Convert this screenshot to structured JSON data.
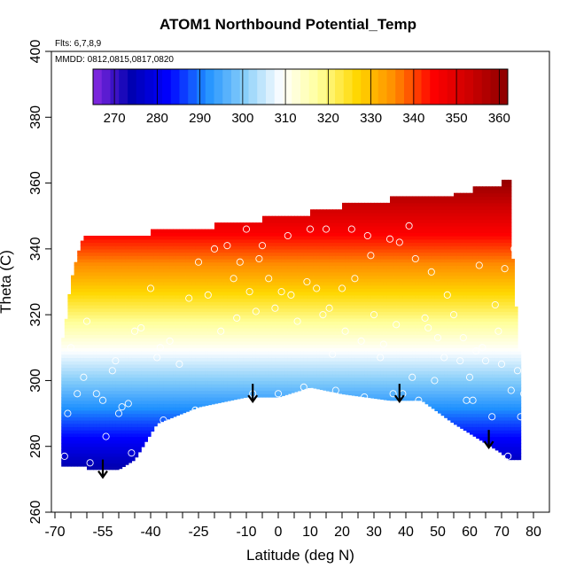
{
  "chart_data": {
    "type": "heatmap",
    "title": "ATOM1 Northbound Potential_Temp",
    "annotations": {
      "flights": "Flts: 6,7,8,9",
      "dates": "MMDD: 0812,0815,0817,0820"
    },
    "xlabel": "Latitude (deg N)",
    "ylabel": "Theta (C)",
    "xlim": [
      -70,
      80
    ],
    "ylim": [
      260,
      400
    ],
    "x_ticks": [
      -70,
      -55,
      -40,
      -25,
      -10,
      0,
      10,
      20,
      30,
      40,
      50,
      60,
      70,
      80
    ],
    "x_tick_labels": [
      "-70",
      "-55",
      "-40",
      "-25",
      "-10",
      "0",
      "10",
      "20",
      "30",
      "40",
      "50",
      "60",
      "70",
      "80"
    ],
    "x_minor_step": 5,
    "y_ticks": [
      260,
      280,
      300,
      320,
      340,
      360,
      380,
      400
    ],
    "y_tick_labels": [
      "260",
      "280",
      "300",
      "320",
      "340",
      "360",
      "380",
      "400"
    ],
    "colorbar": {
      "range": [
        265,
        362
      ],
      "ticks": [
        270,
        280,
        290,
        300,
        310,
        320,
        330,
        340,
        350,
        360
      ],
      "tick_labels": [
        "270",
        "280",
        "290",
        "300",
        "310",
        "320",
        "330",
        "340",
        "350",
        "360"
      ],
      "colors": [
        "#8a2be2",
        "#0000b0",
        "#0000ff",
        "#1e90ff",
        "#87cefa",
        "#ffffff",
        "#ffff99",
        "#ffd700",
        "#ff8c00",
        "#ff0000",
        "#cc0000",
        "#8b0000"
      ]
    },
    "upper_boundary": [
      [
        -68,
        311
      ],
      [
        -67,
        315
      ],
      [
        -65,
        330
      ],
      [
        -63,
        338
      ],
      [
        -62,
        341
      ],
      [
        -61,
        344
      ],
      [
        -40,
        344
      ],
      [
        -40,
        346
      ],
      [
        -20,
        346
      ],
      [
        -20,
        348
      ],
      [
        -5,
        348
      ],
      [
        -5,
        350
      ],
      [
        10,
        350
      ],
      [
        10,
        352
      ],
      [
        20,
        352
      ],
      [
        20,
        354
      ],
      [
        35,
        354
      ],
      [
        35,
        356
      ],
      [
        55,
        356
      ],
      [
        55,
        357
      ],
      [
        61,
        357
      ],
      [
        61,
        359
      ],
      [
        70,
        359
      ],
      [
        70,
        361
      ],
      [
        73,
        361
      ],
      [
        73,
        344
      ],
      [
        74,
        330
      ],
      [
        75,
        315
      ],
      [
        76,
        304
      ]
    ],
    "lower_boundary": [
      [
        -68,
        274
      ],
      [
        -60,
        274
      ],
      [
        -60,
        273
      ],
      [
        -50,
        273
      ],
      [
        -45,
        276
      ],
      [
        -38,
        287
      ],
      [
        -25,
        292
      ],
      [
        -10,
        295
      ],
      [
        0,
        295
      ],
      [
        10,
        298
      ],
      [
        20,
        296
      ],
      [
        35,
        294
      ],
      [
        45,
        294
      ],
      [
        55,
        287
      ],
      [
        65,
        281
      ],
      [
        70,
        278
      ],
      [
        72,
        276
      ],
      [
        76,
        276
      ]
    ],
    "data_points": [
      [
        -67,
        277
      ],
      [
        -66,
        290
      ],
      [
        -65,
        310
      ],
      [
        -63,
        296
      ],
      [
        -61,
        301
      ],
      [
        -60,
        318
      ],
      [
        -59,
        275
      ],
      [
        -57,
        296
      ],
      [
        -55,
        294
      ],
      [
        -54,
        283
      ],
      [
        -52,
        303
      ],
      [
        -51,
        306
      ],
      [
        -50,
        290
      ],
      [
        -49,
        292
      ],
      [
        -47,
        293
      ],
      [
        -46,
        278
      ],
      [
        -45,
        315
      ],
      [
        -43,
        316
      ],
      [
        -40,
        328
      ],
      [
        -38,
        307
      ],
      [
        -37,
        310
      ],
      [
        -36,
        288
      ],
      [
        -34,
        312
      ],
      [
        -31,
        305
      ],
      [
        -28,
        325
      ],
      [
        -26,
        291
      ],
      [
        -25,
        336
      ],
      [
        -22,
        326
      ],
      [
        -20,
        340
      ],
      [
        -18,
        315
      ],
      [
        -16,
        341
      ],
      [
        -14,
        331
      ],
      [
        -13,
        319
      ],
      [
        -12,
        336
      ],
      [
        -10,
        346
      ],
      [
        -9,
        327
      ],
      [
        -8,
        296
      ],
      [
        -7,
        321
      ],
      [
        -6,
        337
      ],
      [
        -5,
        341
      ],
      [
        -3,
        331
      ],
      [
        -1,
        322
      ],
      [
        0,
        296
      ],
      [
        1,
        327
      ],
      [
        3,
        344
      ],
      [
        4,
        326
      ],
      [
        6,
        318
      ],
      [
        8,
        298
      ],
      [
        9,
        330
      ],
      [
        10,
        346
      ],
      [
        12,
        328
      ],
      [
        14,
        320
      ],
      [
        15,
        346
      ],
      [
        16,
        322
      ],
      [
        17,
        308
      ],
      [
        18,
        297
      ],
      [
        20,
        328
      ],
      [
        21,
        315
      ],
      [
        23,
        346
      ],
      [
        24,
        331
      ],
      [
        26,
        312
      ],
      [
        27,
        295
      ],
      [
        28,
        344
      ],
      [
        29,
        338
      ],
      [
        30,
        320
      ],
      [
        32,
        307
      ],
      [
        33,
        311
      ],
      [
        35,
        343
      ],
      [
        36,
        296
      ],
      [
        37,
        317
      ],
      [
        38,
        342
      ],
      [
        39,
        296
      ],
      [
        41,
        347
      ],
      [
        42,
        301
      ],
      [
        43,
        337
      ],
      [
        44,
        294
      ],
      [
        46,
        319
      ],
      [
        47,
        316
      ],
      [
        48,
        333
      ],
      [
        49,
        300
      ],
      [
        50,
        313
      ],
      [
        52,
        307
      ],
      [
        53,
        326
      ],
      [
        55,
        320
      ],
      [
        57,
        306
      ],
      [
        58,
        313
      ],
      [
        59,
        294
      ],
      [
        60,
        301
      ],
      [
        61,
        294
      ],
      [
        62,
        309
      ],
      [
        63,
        335
      ],
      [
        64,
        310
      ],
      [
        65,
        306
      ],
      [
        66,
        278
      ],
      [
        67,
        289
      ],
      [
        68,
        323
      ],
      [
        69,
        315
      ],
      [
        70,
        305
      ],
      [
        71,
        334
      ],
      [
        72,
        277
      ],
      [
        73,
        297
      ],
      [
        74,
        340
      ],
      [
        75,
        303
      ],
      [
        76,
        289
      ],
      [
        77,
        296
      ],
      [
        78,
        312
      ],
      [
        79,
        282
      ]
    ],
    "arrows": [
      [
        -55,
        276
      ],
      [
        -8,
        299
      ],
      [
        38,
        299
      ],
      [
        66,
        285
      ]
    ]
  }
}
